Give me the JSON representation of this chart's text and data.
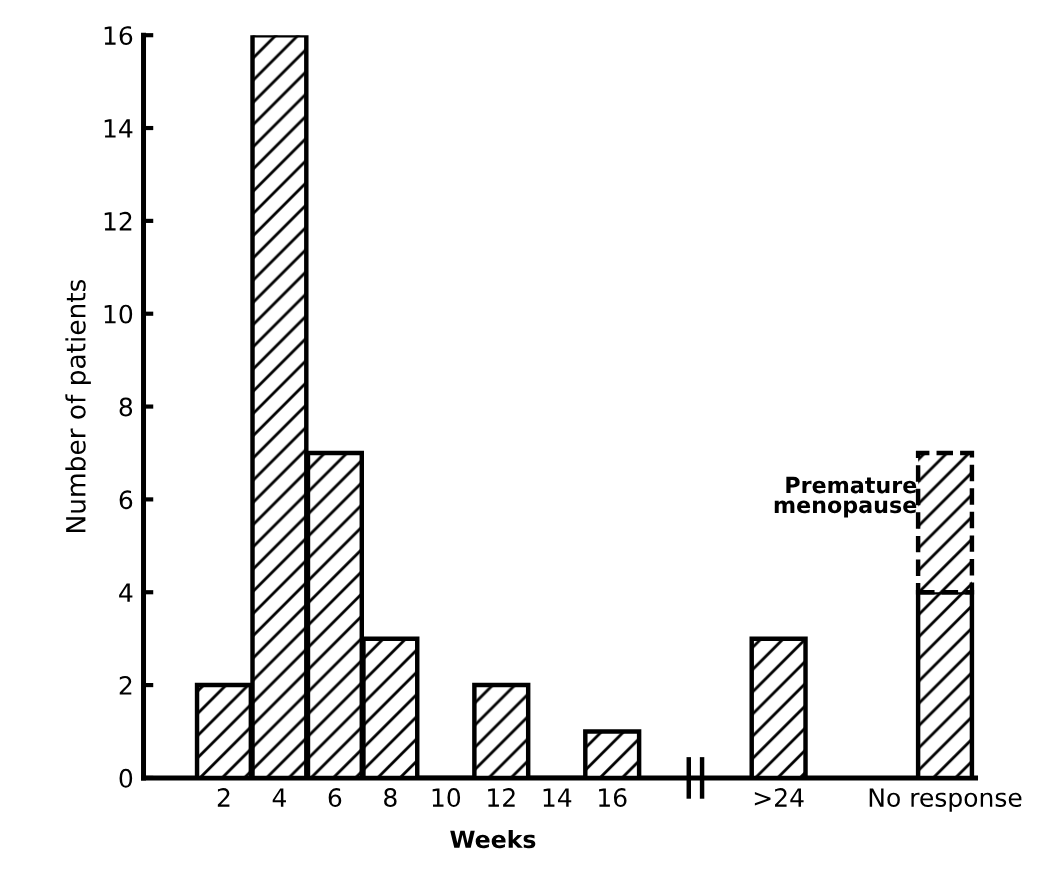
{
  "chart_data": {
    "type": "bar",
    "stacked": true,
    "xlabel": "Weeks",
    "ylabel": "Number of patients",
    "categories": [
      "2",
      "4",
      "6",
      "8",
      "10",
      "12",
      "14",
      "16",
      null,
      null,
      ">24",
      null,
      null,
      "No response"
    ],
    "series": [
      {
        "color": "#000000",
        "values": [
          2,
          16,
          7,
          3,
          0,
          2,
          0,
          1,
          null,
          null,
          3,
          null,
          null,
          4
        ]
      },
      {
        "name": "Premature menopause",
        "color": "#000000",
        "line_style": "dashed",
        "values": [
          null,
          null,
          null,
          null,
          null,
          null,
          null,
          null,
          null,
          null,
          null,
          null,
          null,
          3
        ]
      }
    ],
    "ylim": [
      0,
      16
    ],
    "yticks": [
      0,
      2,
      4,
      6,
      8,
      10,
      12,
      14,
      16
    ],
    "grid": false,
    "legend": false
  }
}
